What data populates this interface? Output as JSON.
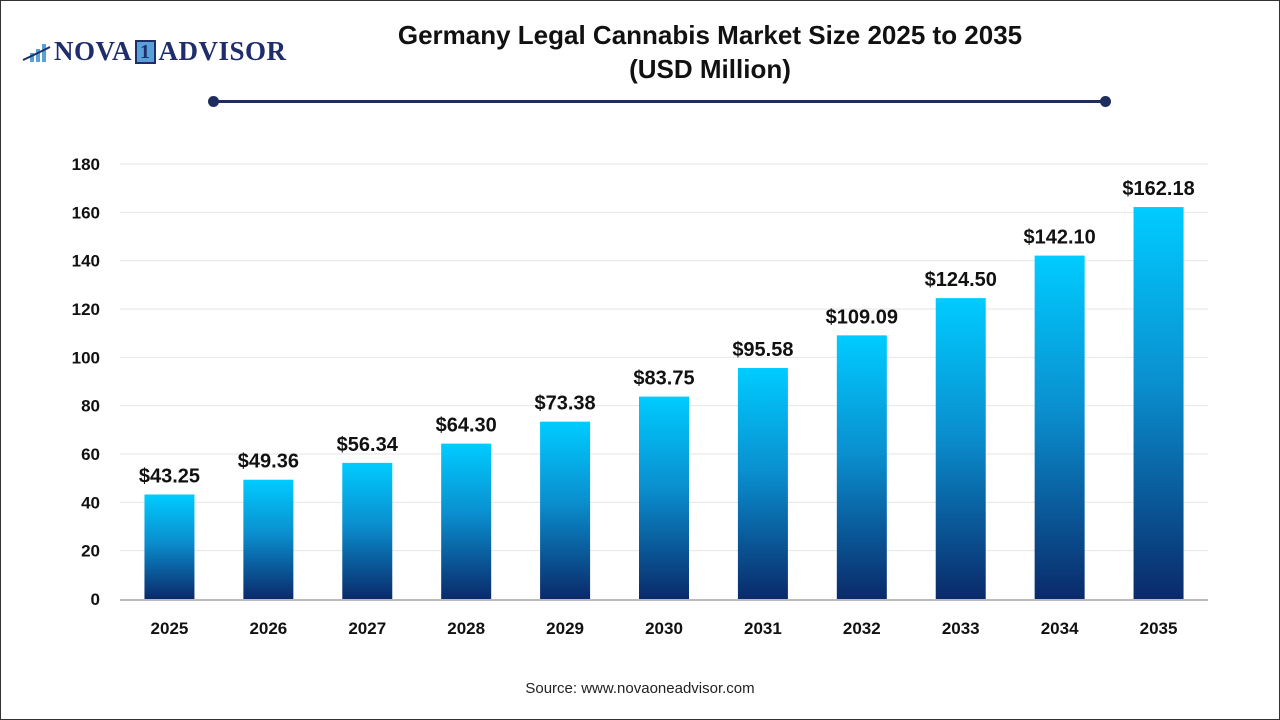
{
  "logo": {
    "text_left": "NOVA",
    "text_mid": "1",
    "text_right": "ADVISOR"
  },
  "title_line1": "Germany Legal Cannabis Market Size 2025 to 2035",
  "title_line2": "(USD Million)",
  "source": "Source: www.novaoneadvisor.com",
  "colors": {
    "bar_top": "#00ccff",
    "bar_bottom": "#0a2a6a",
    "rule": "#1f2d5c"
  },
  "chart_data": {
    "type": "bar",
    "categories": [
      "2025",
      "2026",
      "2027",
      "2028",
      "2029",
      "2030",
      "2031",
      "2032",
      "2033",
      "2034",
      "2035"
    ],
    "values": [
      43.25,
      49.36,
      56.34,
      64.3,
      73.38,
      83.75,
      95.58,
      109.09,
      124.5,
      142.1,
      162.18
    ],
    "data_labels": [
      "$43.25",
      "$49.36",
      "$56.34",
      "$64.30",
      "$73.38",
      "$83.75",
      "$95.58",
      "$109.09",
      "$124.50",
      "$142.10",
      "$162.18"
    ],
    "yticks": [
      "0",
      "20",
      "40",
      "60",
      "80",
      "100",
      "120",
      "140",
      "160",
      "180"
    ],
    "ylim": [
      0,
      180
    ],
    "grid": true,
    "legend": "none"
  }
}
